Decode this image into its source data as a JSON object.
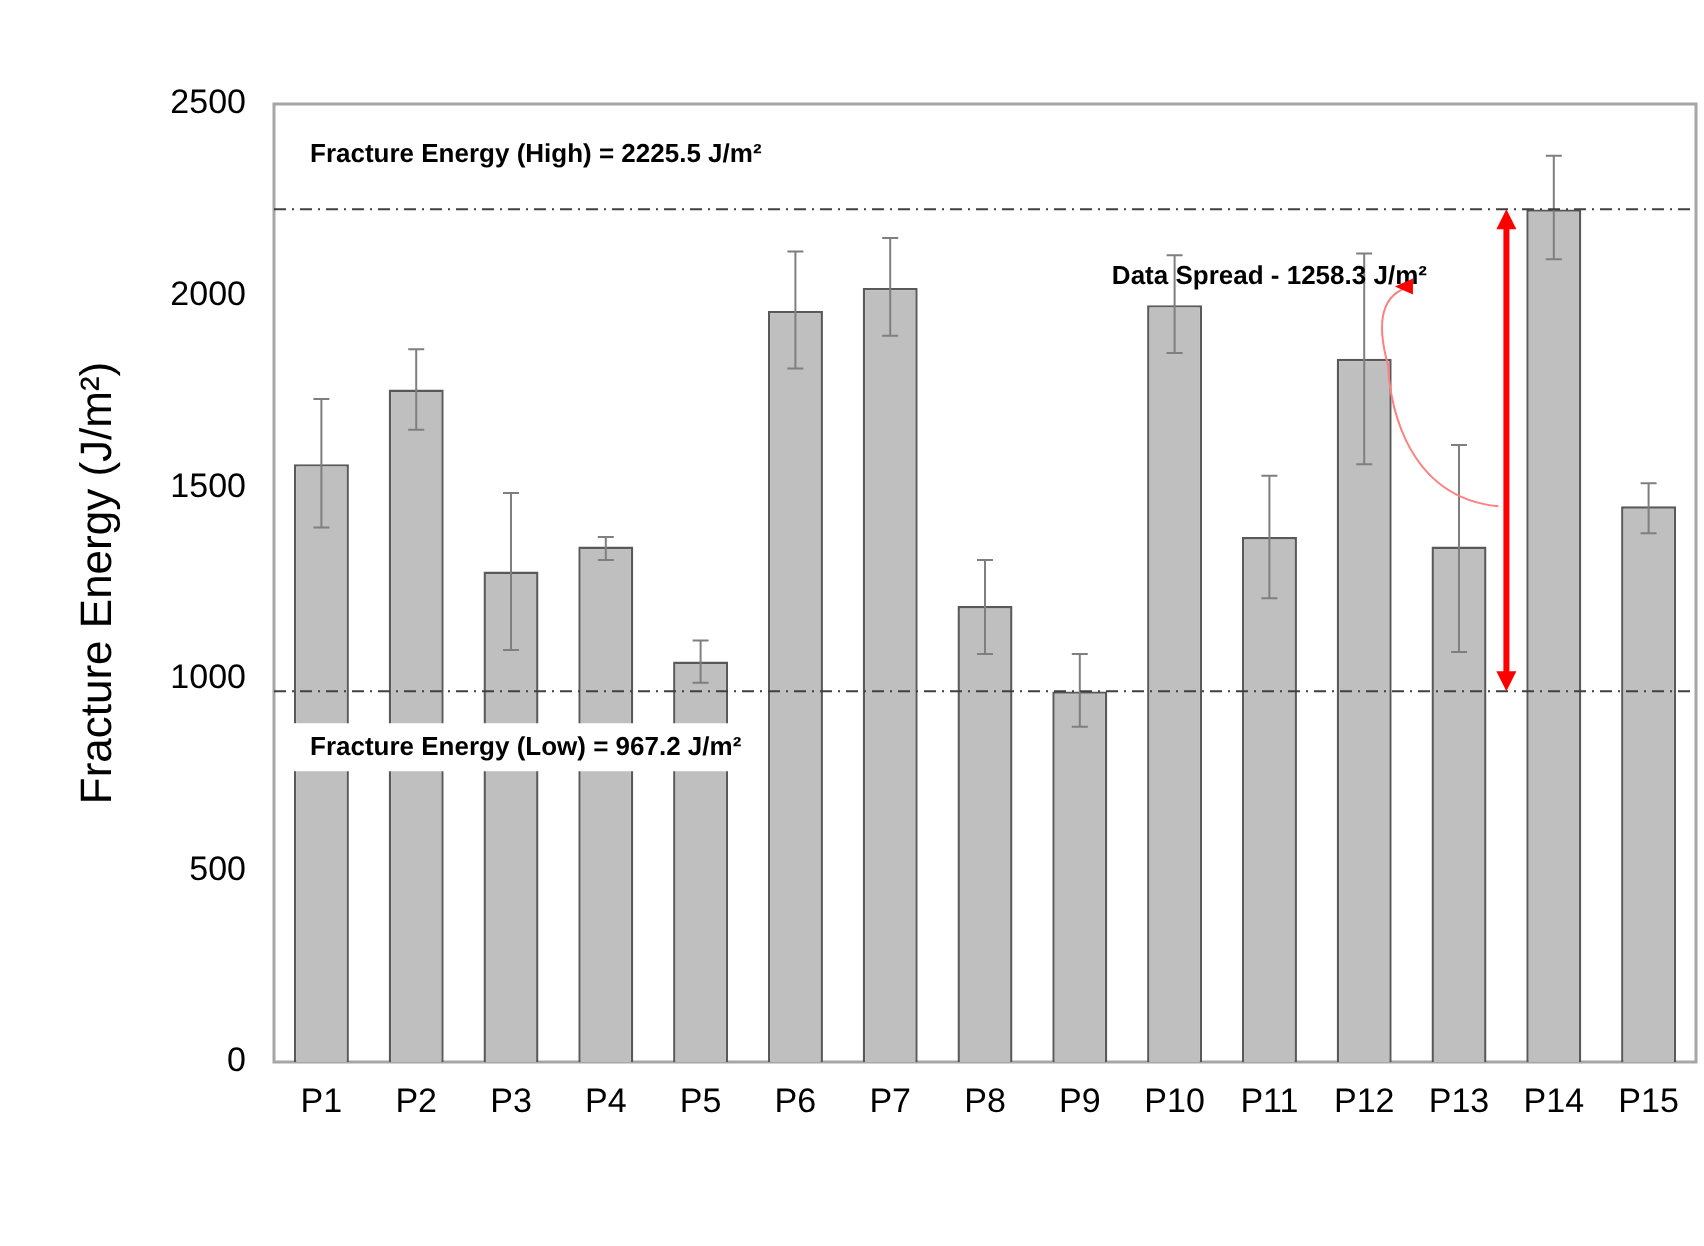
{
  "chart_data": {
    "type": "bar",
    "ylabel": "Fracture Energy (J/m²)",
    "categories": [
      "P1",
      "P2",
      "P3",
      "P4",
      "P5",
      "P6",
      "P7",
      "P8",
      "P9",
      "P10",
      "P11",
      "P12",
      "P13",
      "P14",
      "P15"
    ],
    "values": [
      1560,
      1755,
      1280,
      1345,
      1045,
      1960,
      2020,
      1190,
      967,
      1975,
      1370,
      1835,
      1345,
      2225,
      1450
    ],
    "errors": [
      [
        1395,
        1730
      ],
      [
        1650,
        1860
      ],
      [
        1075,
        1485
      ],
      [
        1310,
        1370
      ],
      [
        990,
        1100
      ],
      [
        1810,
        2115
      ],
      [
        1895,
        2150
      ],
      [
        1065,
        1310
      ],
      [
        875,
        1065
      ],
      [
        1850,
        2105
      ],
      [
        1210,
        1530
      ],
      [
        1560,
        2110
      ],
      [
        1070,
        1610
      ],
      [
        2095,
        2365
      ],
      [
        1380,
        1510
      ]
    ],
    "color": "#bfbfbf",
    "ylim": [
      0,
      2500
    ],
    "yticks": [
      0,
      500,
      1000,
      1500,
      2000,
      2500
    ],
    "grid": false,
    "legend": false,
    "ref_lines": [
      {
        "axis": "y",
        "value": 2225.5,
        "label": "Fracture Energy (High) = 2225.5 J/m²",
        "color": "#404040",
        "line_style": "dashdot"
      },
      {
        "axis": "y",
        "value": 967.2,
        "label": "Fracture Energy (Low) = 967.2 J/m²",
        "color": "#404040",
        "line_style": "dashdot"
      }
    ],
    "annotations": [
      "Data Spread - 1258.3 J/m²"
    ]
  }
}
